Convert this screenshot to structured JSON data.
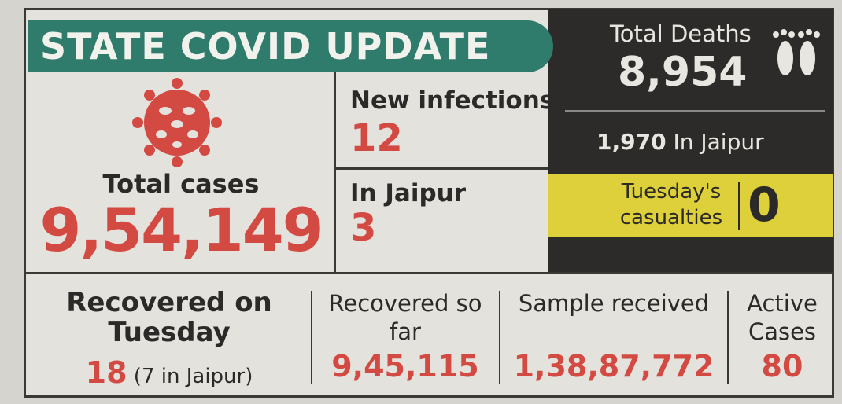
{
  "header": {
    "title": "STATE COVID UPDATE"
  },
  "total_cases": {
    "label": "Total cases",
    "value": "9,54,149"
  },
  "new_infections": {
    "label": "New infections",
    "value": "12"
  },
  "jaipur_infections": {
    "label": "In Jaipur",
    "value": "3"
  },
  "total_deaths": {
    "label": "Total Deaths",
    "value": "8,954",
    "jaipur_value": "1,970",
    "jaipur_label": "In Jaipur"
  },
  "casualties": {
    "label": "Tuesday's casualties",
    "value": "0"
  },
  "stats": [
    {
      "label": "Recovered on Tuesday",
      "value": "18",
      "note": "(7 in Jaipur)"
    },
    {
      "label": "Recovered so far",
      "value": "9,45,115"
    },
    {
      "label": "Sample received",
      "value": "1,38,87,772"
    },
    {
      "label": "Active Cases",
      "value": "80"
    }
  ]
}
